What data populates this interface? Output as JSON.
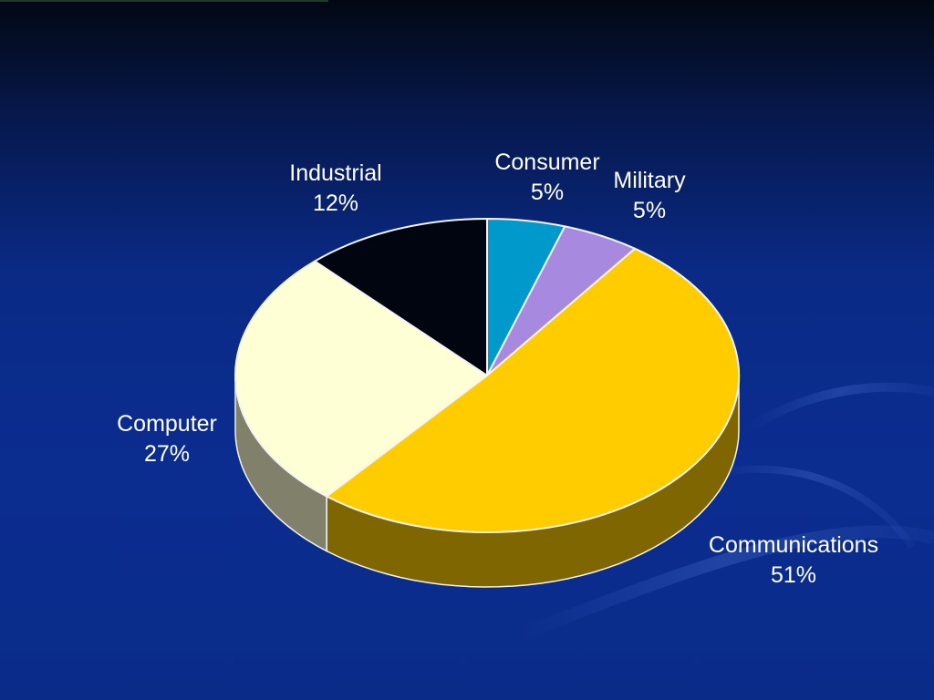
{
  "colors": {
    "Consumer": "#0099cc",
    "Military": "#a78ae0",
    "Communications": "#ffcc00",
    "Computer": "#ffffd6",
    "Industrial": "#000510"
  },
  "chart_data": {
    "type": "pie",
    "title": "",
    "categories": [
      "Consumer",
      "Military",
      "Communications",
      "Computer",
      "Industrial"
    ],
    "values": [
      5,
      5,
      51,
      27,
      12
    ],
    "labels": [
      "5%",
      "5%",
      "51%",
      "27%",
      "12%"
    ],
    "three_d": true,
    "legend": "none",
    "start_angle": "12 o'clock",
    "direction": "clockwise"
  }
}
